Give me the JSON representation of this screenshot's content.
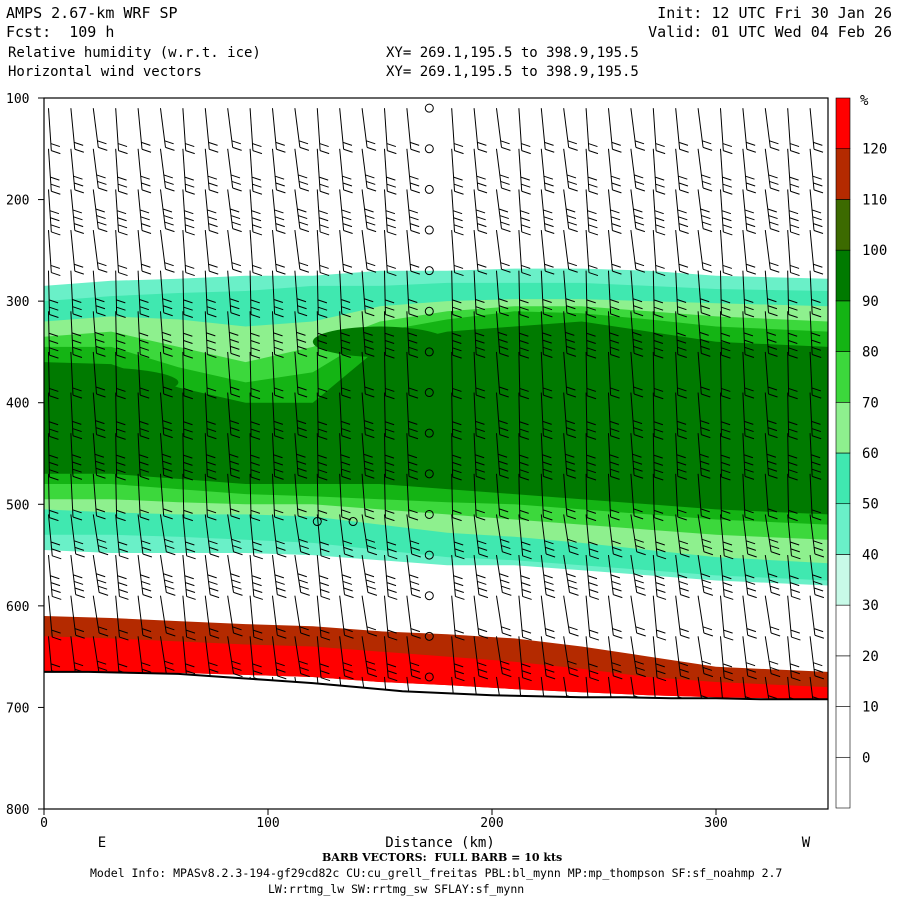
{
  "header": {
    "model": "AMPS 2.67-km WRF SP",
    "forecast": "Fcst:  109 h",
    "field1": "Relative humidity (w.r.t. ice)",
    "field2": "Horizontal wind vectors",
    "xy1": "XY= 269.1,195.5 to 398.9,195.5",
    "xy2": "XY= 269.1,195.5 to 398.9,195.5",
    "init": "Init: 12 UTC Fri 30 Jan 26",
    "valid": "Valid: 01 UTC Wed 04 Feb 26"
  },
  "footer": {
    "barb_note": "BARB VECTORS:  FULL BARB = 10 kts",
    "model_info": "Model Info: MPASv8.2.3-194-gf29cd82c CU:cu_grell_freitas PBL:bl_mynn MP:mp_thompson SF:sf_noahmp 2.7",
    "model_info2": "LW:rrtmg_lw SW:rrtmg_sw SFLAY:sf_mynn"
  },
  "chart_data": {
    "type": "heatmap",
    "title": "Relative humidity (w.r.t. ice)",
    "xlabel": "Distance (km)",
    "ylabel": "",
    "xlim": [
      0,
      350
    ],
    "ylim": [
      800,
      100
    ],
    "x_ticks": [
      0,
      100,
      200,
      300
    ],
    "y_ticks": [
      100,
      200,
      300,
      400,
      500,
      600,
      700,
      800
    ],
    "end_labels": {
      "left": "E",
      "right": "W"
    },
    "colorbar": {
      "unit": "%",
      "levels": [
        0,
        10,
        20,
        30,
        40,
        50,
        60,
        70,
        80,
        90,
        100,
        110,
        120
      ],
      "colors": [
        "#ffffff",
        "#ffffff",
        "#ffffff",
        "#ffffff",
        "#c8fae8",
        "#6af0c8",
        "#40e8b0",
        "#8ef08e",
        "#3cd83c",
        "#14b414",
        "#007a00",
        "#3c6a00",
        "#b42a00",
        "#ff0000"
      ]
    },
    "contour_bands": [
      {
        "level": 40,
        "p_top": [
          285,
          280,
          278,
          275,
          275,
          270,
          270,
          268,
          268,
          270,
          275,
          278
        ],
        "p_bot": [
          545,
          548,
          548,
          548,
          550,
          555,
          560,
          560,
          565,
          570,
          575,
          580
        ]
      },
      {
        "level": 50,
        "p_top": [
          300,
          295,
          292,
          290,
          285,
          285,
          282,
          282,
          282,
          285,
          288,
          290
        ],
        "p_bot": [
          530,
          530,
          532,
          535,
          538,
          545,
          552,
          555,
          560,
          565,
          570,
          575
        ]
      },
      {
        "level": 60,
        "p_top": [
          320,
          315,
          318,
          325,
          320,
          305,
          300,
          298,
          298,
          300,
          302,
          305
        ],
        "p_bot": [
          505,
          508,
          510,
          510,
          512,
          520,
          528,
          532,
          538,
          545,
          552,
          558
        ]
      },
      {
        "level": 70,
        "p_top": [
          335,
          330,
          345,
          360,
          345,
          320,
          310,
          305,
          305,
          310,
          315,
          320
        ],
        "p_bot": [
          495,
          495,
          498,
          500,
          500,
          505,
          510,
          515,
          520,
          525,
          530,
          535
        ]
      },
      {
        "level": 80,
        "p_top": [
          345,
          345,
          365,
          380,
          370,
          330,
          318,
          310,
          312,
          318,
          325,
          330
        ],
        "p_bot": [
          480,
          480,
          485,
          490,
          492,
          495,
          498,
          500,
          505,
          510,
          515,
          520
        ]
      },
      {
        "level": 90,
        "p_top": [
          360,
          362,
          385,
          400,
          400,
          345,
          330,
          325,
          320,
          330,
          340,
          345
        ],
        "p_bot": [
          470,
          470,
          475,
          480,
          480,
          480,
          485,
          490,
          495,
          500,
          505,
          510
        ]
      },
      {
        "level": 110,
        "p_top": [
          610,
          612,
          615,
          618,
          620,
          625,
          628,
          632,
          640,
          650,
          660,
          665
        ],
        "p_bot": [
          665,
          665,
          666,
          668,
          670,
          675,
          678,
          682,
          685,
          688,
          690,
          692
        ]
      },
      {
        "level": 120,
        "p_top": [
          630,
          632,
          635,
          638,
          640,
          645,
          650,
          655,
          662,
          670,
          675,
          680
        ],
        "p_bot": [
          665,
          665,
          666,
          668,
          670,
          675,
          678,
          682,
          685,
          688,
          690,
          692
        ]
      }
    ],
    "band_x": [
      0,
      30,
      60,
      90,
      120,
      150,
      180,
      210,
      240,
      270,
      300,
      350
    ],
    "moist_cores": [
      {
        "label": "90",
        "x": 150,
        "p": 340,
        "rx_km": 30,
        "rp": 15
      },
      {
        "label": "90",
        "x": 20,
        "p": 380,
        "rx_km": 40,
        "rp": 15
      },
      {
        "label": "90",
        "x": 15,
        "p": 455,
        "rx_km": 45,
        "rp": 12
      }
    ],
    "terrain": {
      "x": [
        0,
        20,
        40,
        60,
        80,
        100,
        120,
        140,
        160,
        180,
        200,
        220,
        240,
        260,
        280,
        300,
        320,
        350
      ],
      "p": [
        665,
        665,
        666,
        667,
        670,
        673,
        676,
        680,
        684,
        686,
        688,
        689,
        690,
        690,
        691,
        691,
        692,
        692
      ]
    },
    "wind_barbs": {
      "x": [
        2,
        12,
        22,
        32,
        42,
        52,
        62,
        72,
        82,
        92,
        102,
        112,
        122,
        132,
        142,
        152,
        162,
        172,
        182,
        192,
        202,
        212,
        222,
        232,
        242,
        252,
        262,
        272,
        282,
        292,
        302,
        312,
        322,
        332,
        342
      ],
      "p": [
        110,
        150,
        190,
        230,
        270,
        310,
        350,
        390,
        430,
        470,
        510,
        550,
        590,
        630,
        670
      ],
      "calm_x": [
        172,
        122,
        138
      ],
      "calm_p_122": 517
    }
  }
}
